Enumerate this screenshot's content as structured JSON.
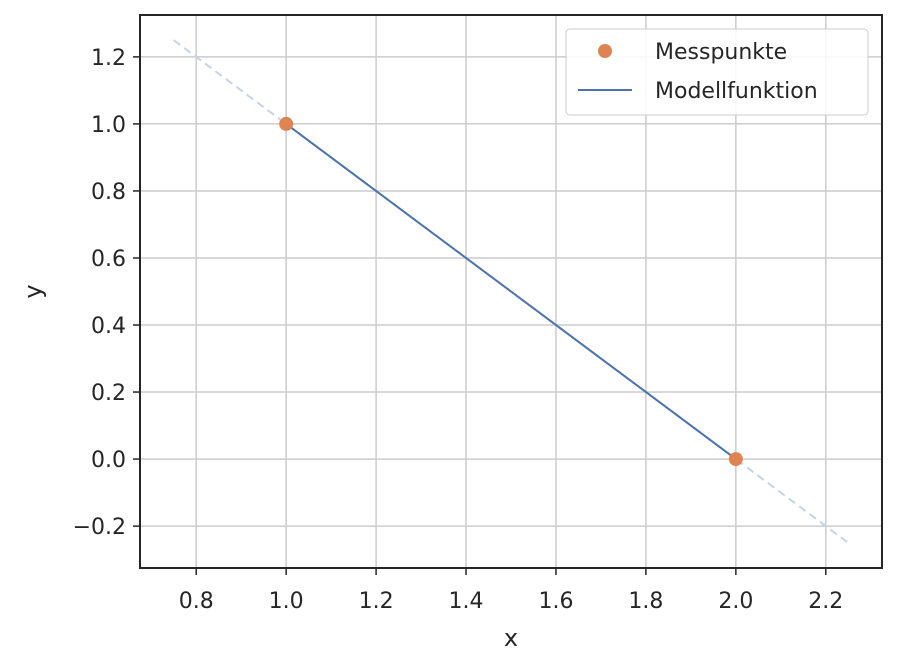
{
  "chart_data": {
    "type": "line",
    "xlabel": "x",
    "ylabel": "y",
    "xlim": [
      0.675,
      2.325
    ],
    "ylim": [
      -0.325,
      1.325
    ],
    "x_ticks": [
      0.8,
      1.0,
      1.2,
      1.4,
      1.6,
      1.8,
      2.0,
      2.2
    ],
    "x_tick_labels": [
      "0.8",
      "1.0",
      "1.2",
      "1.4",
      "1.6",
      "1.8",
      "2.0",
      "2.2"
    ],
    "y_ticks": [
      -0.2,
      0.0,
      0.2,
      0.4,
      0.6,
      0.8,
      1.0,
      1.2
    ],
    "y_tick_labels": [
      "−0.2",
      "0.0",
      "0.2",
      "0.4",
      "0.6",
      "0.8",
      "1.0",
      "1.2"
    ],
    "grid": true,
    "legend_position": "top-right",
    "series": [
      {
        "name": "Messpunkte",
        "kind": "scatter",
        "color": "#dd8452",
        "x": [
          1.0,
          2.0
        ],
        "y": [
          1.0,
          0.0
        ]
      },
      {
        "name": "Modellfunktion",
        "kind": "line",
        "color": "#4c72b0",
        "x": [
          1.0,
          2.0
        ],
        "y": [
          1.0,
          0.0
        ]
      }
    ],
    "extension_line": {
      "style": "dashed",
      "color": "#c5d3e6",
      "x": [
        0.75,
        2.25
      ],
      "y": [
        1.25,
        -0.25
      ]
    }
  }
}
